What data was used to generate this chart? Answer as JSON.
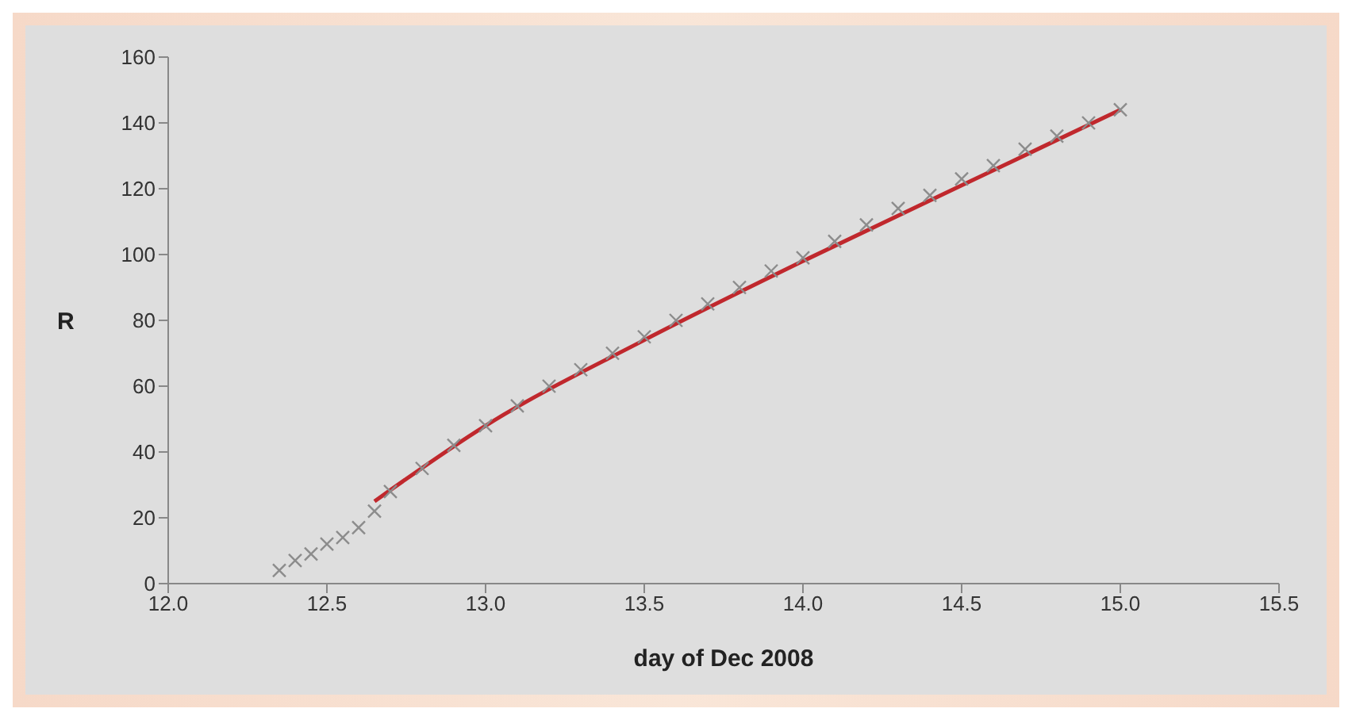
{
  "chart_data": {
    "type": "scatter",
    "xlabel": "day of Dec 2008",
    "ylabel": "R",
    "xlim": [
      12.0,
      15.5
    ],
    "xticks": [
      {
        "value": 12,
        "label": "12.0"
      },
      12.5,
      {
        "value": 13,
        "label": "13.0"
      },
      13.5,
      {
        "value": 14,
        "label": "14.0"
      },
      14.5,
      {
        "value": 15,
        "label": "15.0"
      },
      15.5
    ],
    "ylim": [
      0,
      160
    ],
    "yticks": [
      0,
      20,
      40,
      60,
      80,
      100,
      120,
      140,
      160
    ],
    "series": [
      {
        "marker": "cross",
        "color": "#8c8c8c",
        "x": [
          12.35,
          12.4,
          12.45,
          12.5,
          12.55,
          12.6,
          12.65,
          12.7,
          12.8,
          12.9,
          13.0,
          13.1,
          13.2,
          13.3,
          13.4,
          13.5,
          13.6,
          13.7,
          13.8,
          13.9,
          14.0,
          14.1,
          14.2,
          14.3,
          14.4,
          14.5,
          14.6,
          14.7,
          14.8,
          14.9,
          15.0
        ],
        "values": [
          4,
          7,
          9,
          12,
          14,
          17,
          22,
          28,
          35,
          42,
          48,
          54,
          60,
          65,
          70,
          75,
          80,
          85,
          90,
          95,
          99,
          104,
          109,
          114,
          118,
          123,
          127,
          132,
          136,
          140,
          144
        ]
      },
      {
        "type": "line",
        "color": "#c0282d",
        "line_style": "solid",
        "x": [
          12.65,
          13.0,
          13.5,
          14.0,
          14.5,
          15.0
        ],
        "values": [
          25,
          48,
          74,
          98,
          121,
          144
        ]
      }
    ]
  }
}
